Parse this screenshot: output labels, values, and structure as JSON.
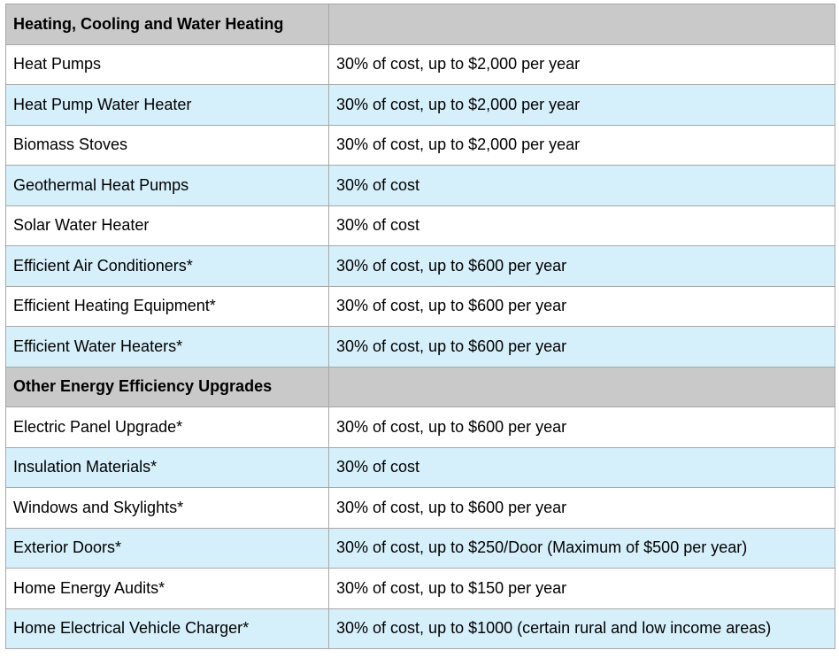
{
  "sections": [
    {
      "title": "Heating, Cooling and Water Heating",
      "rows": [
        {
          "item": "Heat Pumps",
          "credit": "30% of cost, up to $2,000 per year"
        },
        {
          "item": "Heat Pump Water Heater",
          "credit": "30% of cost, up to $2,000 per year"
        },
        {
          "item": "Biomass Stoves",
          "credit": "30% of cost, up to $2,000 per year"
        },
        {
          "item": "Geothermal Heat Pumps",
          "credit": "30% of cost"
        },
        {
          "item": "Solar Water Heater",
          "credit": "30% of cost"
        },
        {
          "item": "Efficient Air Conditioners*",
          "credit": "30% of cost, up to $600 per year"
        },
        {
          "item": "Efficient Heating Equipment*",
          "credit": "30% of cost, up to $600 per year"
        },
        {
          "item": "Efficient Water Heaters*",
          "credit": "30% of cost, up to $600 per year"
        }
      ]
    },
    {
      "title": "Other Energy Efficiency Upgrades",
      "rows": [
        {
          "item": "Electric Panel Upgrade*",
          "credit": "30% of cost, up to $600 per year"
        },
        {
          "item": "Insulation Materials*",
          "credit": "30% of cost"
        },
        {
          "item": "Windows and Skylights*",
          "credit": "30% of cost, up to $600 per year"
        },
        {
          "item": "Exterior Doors*",
          "credit": "30% of cost, up to $250/Door (Maximum of $500 per year)"
        },
        {
          "item": "Home Energy Audits*",
          "credit": "30% of cost, up to $150 per year"
        },
        {
          "item": "Home Electrical Vehicle Charger*",
          "credit": "30% of cost, up to $1000 (certain rural and low income areas)"
        }
      ]
    }
  ],
  "colors": {
    "section_header_bg": "#c9c9c9",
    "alt_row_bg": "#d6f0fb",
    "row_bg": "#ffffff",
    "border": "#a7a7a7"
  }
}
